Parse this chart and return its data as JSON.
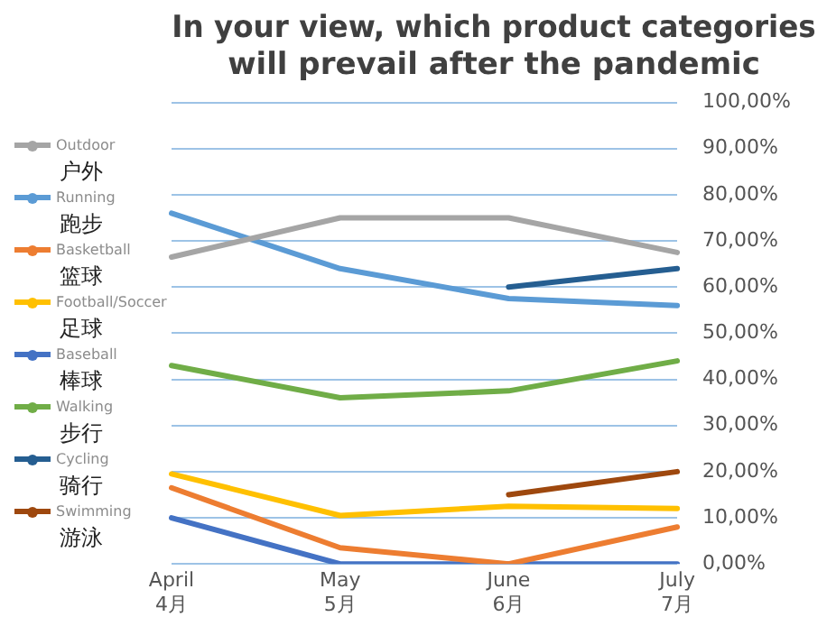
{
  "chart_data": {
    "type": "line",
    "title": "In your view, which product categories\nwill prevail after the pandemic",
    "categories": [
      "April\n4月",
      "May\n5月",
      "June\n6月",
      "July\n7月"
    ],
    "series": [
      {
        "name": "Outdoor\n户外",
        "color": "#a5a5a5",
        "values": [
          66.5,
          75,
          75,
          67.5
        ]
      },
      {
        "name": "Running\n跑步",
        "color": "#5b9bd5",
        "values": [
          76,
          64,
          57.5,
          56
        ]
      },
      {
        "name": "Basketball\n篮球",
        "color": "#ed7d31",
        "values": [
          16.5,
          3.5,
          0,
          8
        ]
      },
      {
        "name": "Football/Soccer\n足球",
        "color": "#ffc000",
        "values": [
          19.5,
          10.5,
          12.5,
          12
        ]
      },
      {
        "name": "Baseball\n棒球",
        "color": "#4472c4",
        "values": [
          10,
          0,
          0,
          0
        ]
      },
      {
        "name": "Walking\n步行",
        "color": "#70ad47",
        "values": [
          43,
          36,
          37.5,
          44
        ]
      },
      {
        "name": "Cycling\n骑行",
        "color": "#255e91",
        "values": [
          null,
          null,
          60,
          64
        ]
      },
      {
        "name": "Swimming\n游泳",
        "color": "#9e480e",
        "values": [
          null,
          null,
          15,
          20
        ]
      }
    ],
    "ylim": [
      0,
      100
    ],
    "yticks": [
      {
        "value": 0,
        "label": "0,00%"
      },
      {
        "value": 10,
        "label": "10,00%"
      },
      {
        "value": 20,
        "label": "20,00%"
      },
      {
        "value": 30,
        "label": "30,00%"
      },
      {
        "value": 40,
        "label": "40,00%"
      },
      {
        "value": 50,
        "label": "50,00%"
      },
      {
        "value": 60,
        "label": "60,00%"
      },
      {
        "value": 70,
        "label": "70,00%"
      },
      {
        "value": 80,
        "label": "80,00%"
      },
      {
        "value": 90,
        "label": "90,00%"
      },
      {
        "value": 100,
        "label": "100,00%"
      }
    ],
    "grid": "y",
    "legend": "left",
    "marker": "none",
    "line_style": "solid"
  }
}
